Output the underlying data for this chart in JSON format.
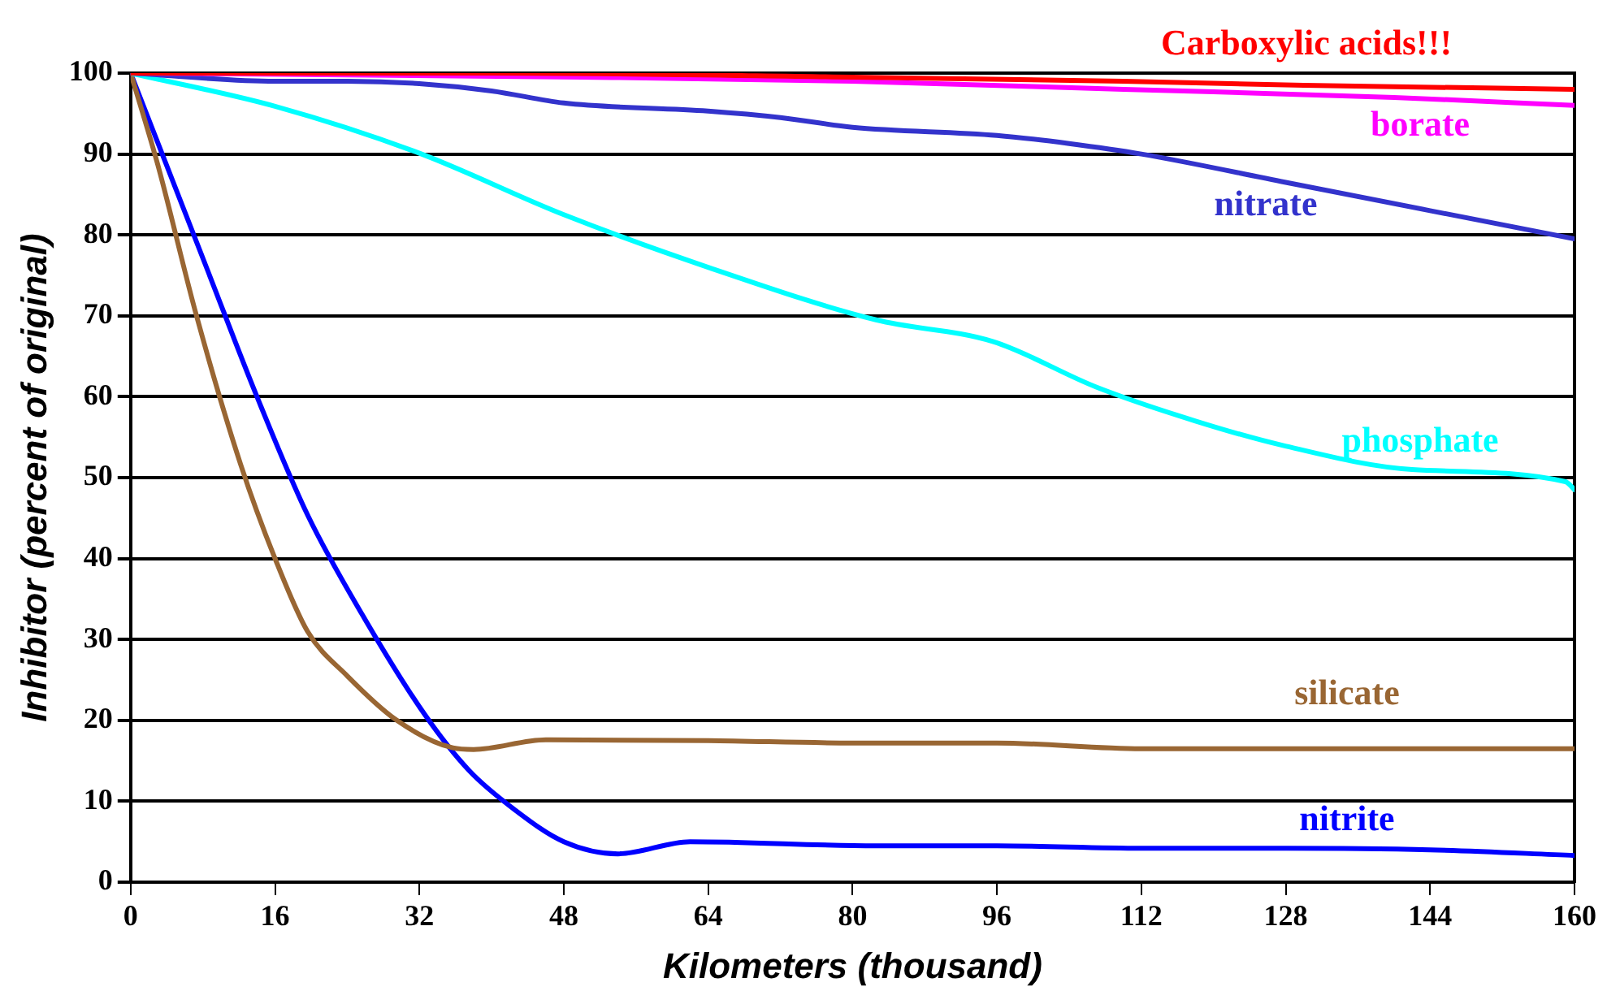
{
  "chart_data": {
    "type": "line",
    "xlabel": "Kilometers (thousand)",
    "ylabel": "Inhibitor (percent of original)",
    "xlim": [
      0,
      160
    ],
    "xticks": [
      0,
      16,
      32,
      48,
      64,
      80,
      96,
      112,
      128,
      144,
      160
    ],
    "ylim": [
      0,
      100
    ],
    "yticks": [
      0,
      10,
      20,
      30,
      40,
      50,
      60,
      70,
      80,
      90,
      100
    ],
    "grid": "y",
    "legend": false,
    "marker": "none",
    "line_style": "solid",
    "series": [
      {
        "name": "Carboxylic acids!!!",
        "color": "#ff0000",
        "x": [
          0,
          40,
          80,
          110,
          130,
          160
        ],
        "values": [
          100,
          100,
          99.5,
          99,
          98.5,
          98
        ]
      },
      {
        "name": "borate",
        "color": "#ff00ff",
        "x": [
          0,
          50,
          80,
          110,
          140,
          160
        ],
        "values": [
          100,
          99.5,
          99,
          98,
          97,
          96
        ]
      },
      {
        "name": "nitrate",
        "color": "#3333cc",
        "x": [
          0,
          16,
          24,
          32,
          40,
          48,
          64,
          72,
          80,
          96,
          104,
          112,
          128,
          144,
          160
        ],
        "values": [
          100,
          99,
          99,
          98.7,
          97.8,
          96.3,
          95.3,
          94.5,
          93.3,
          92.3,
          91.3,
          90,
          86.5,
          83,
          79.5
        ]
      },
      {
        "name": "phosphate",
        "color": "#00ffff",
        "x": [
          0,
          16,
          32,
          48,
          64,
          82.6,
          95.6,
          107,
          118,
          127.6,
          142,
          159,
          160
        ],
        "values": [
          100,
          95.9,
          90.1,
          82.5,
          76,
          69.5,
          66.8,
          61.2,
          57,
          54,
          51,
          49.5,
          48.5
        ]
      },
      {
        "name": "silicate",
        "color": "#996633",
        "x": [
          0,
          3,
          7.3,
          12.2,
          16,
          19.6,
          24,
          29.5,
          35.7,
          38,
          46,
          64,
          80,
          96,
          112,
          160
        ],
        "values": [
          100,
          88.7,
          70,
          51.6,
          40,
          31,
          25.5,
          20,
          16.6,
          16.4,
          17.6,
          17.5,
          17.2,
          17.2,
          16.5,
          16.5
        ]
      },
      {
        "name": "nitrite",
        "color": "#0000ff",
        "x": [
          0,
          8.5,
          14,
          19.6,
          25.7,
          32.6,
          37.5,
          42.5,
          48,
          54,
          62,
          82.6,
          96,
          112,
          128,
          144,
          160
        ],
        "values": [
          100,
          75.7,
          60,
          45.4,
          33,
          20.7,
          13.8,
          9,
          5,
          3.5,
          5,
          4.5,
          4.5,
          4.2,
          4.2,
          4,
          3.3
        ]
      }
    ]
  }
}
